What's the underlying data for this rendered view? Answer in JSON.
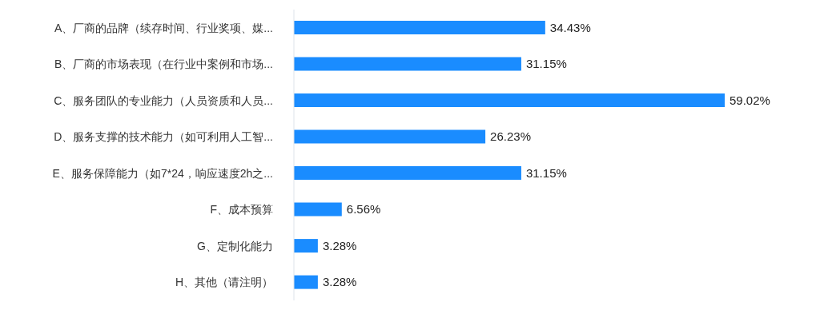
{
  "chart_data": {
    "type": "bar",
    "orientation": "horizontal",
    "categories": [
      "A、厂商的品牌（续存时间、行业奖项、媒...",
      "B、厂商的市场表现（在行业中案例和市场...",
      "C、服务团队的专业能力（人员资质和人员...",
      "D、服务支撑的技术能力（如可利用人工智...",
      "E、服务保障能力（如7*24，响应速度2h之...",
      "F、成本预算",
      "G、定制化能力",
      "H、其他（请注明）"
    ],
    "values": [
      34.43,
      31.15,
      59.02,
      26.23,
      31.15,
      6.56,
      3.28,
      3.28
    ],
    "value_labels": [
      "34.43%",
      "31.15%",
      "59.02%",
      "26.23%",
      "31.15%",
      "6.56%",
      "3.28%",
      "3.28%"
    ],
    "color": "#1a8cff",
    "grid": false,
    "legend": false
  }
}
